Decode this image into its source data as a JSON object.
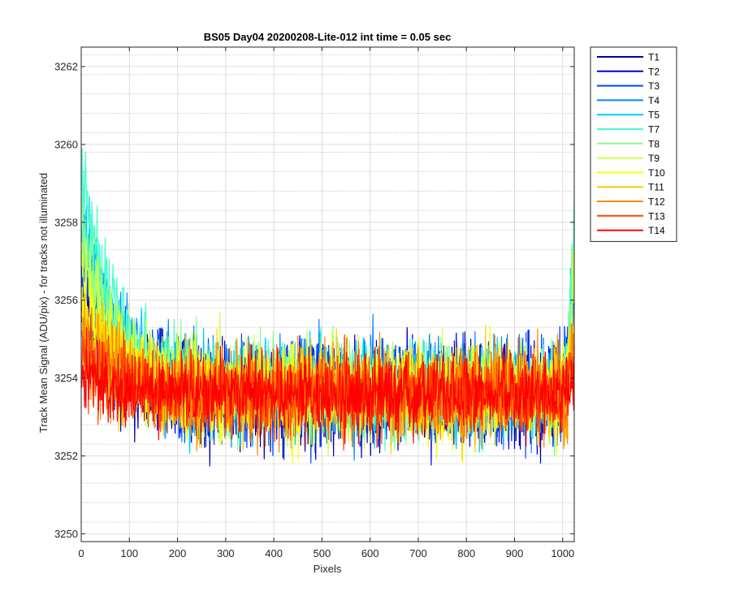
{
  "chart_data": {
    "type": "line",
    "title": "BS05 Day04 20200208-Lite-012 int time = 0.05 sec",
    "xlabel": "Pixels",
    "ylabel": "Track Mean Signal (ADU/pix) - for tracks not illuminated",
    "xlim": [
      0,
      1024
    ],
    "ylim": [
      3249.8,
      3262.5
    ],
    "xticks": [
      0,
      100,
      200,
      300,
      400,
      500,
      600,
      700,
      800,
      900,
      1000
    ],
    "yticks": [
      3250,
      3252,
      3254,
      3256,
      3258,
      3260,
      3262
    ],
    "grid": {
      "major": true,
      "minor_y": true
    },
    "legend_placement": "outside-top-right",
    "series": [
      {
        "name": "T1",
        "color": "#0000a8",
        "mean": 3253.5,
        "start": 3256.0,
        "amplitude": 1.25
      },
      {
        "name": "T2",
        "color": "#0000e0",
        "mean": 3253.6,
        "start": 3256.5,
        "amplitude": 1.2
      },
      {
        "name": "T3",
        "color": "#0044ff",
        "mean": 3253.6,
        "start": 3257.0,
        "amplitude": 1.2
      },
      {
        "name": "T4",
        "color": "#0088ff",
        "mean": 3253.7,
        "start": 3257.5,
        "amplitude": 1.15
      },
      {
        "name": "T5",
        "color": "#00ccff",
        "mean": 3253.7,
        "start": 3258.0,
        "amplitude": 1.15
      },
      {
        "name": "T7",
        "color": "#44ffcc",
        "mean": 3253.7,
        "start": 3259.2,
        "amplitude": 1.1
      },
      {
        "name": "T8",
        "color": "#88ff88",
        "mean": 3253.7,
        "start": 3258.0,
        "amplitude": 1.1
      },
      {
        "name": "T9",
        "color": "#ccff44",
        "mean": 3253.7,
        "start": 3257.0,
        "amplitude": 1.1
      },
      {
        "name": "T10",
        "color": "#ffff00",
        "mean": 3253.6,
        "start": 3256.0,
        "amplitude": 1.15
      },
      {
        "name": "T11",
        "color": "#ffcc00",
        "mean": 3253.6,
        "start": 3255.5,
        "amplitude": 1.1
      },
      {
        "name": "T12",
        "color": "#ff8800",
        "mean": 3253.6,
        "start": 3255.0,
        "amplitude": 1.1
      },
      {
        "name": "T13",
        "color": "#ff4400",
        "mean": 3253.6,
        "start": 3254.5,
        "amplitude": 1.05
      },
      {
        "name": "T14",
        "color": "#ff0000",
        "mean": 3253.6,
        "start": 3254.2,
        "amplitude": 0.95
      }
    ]
  }
}
